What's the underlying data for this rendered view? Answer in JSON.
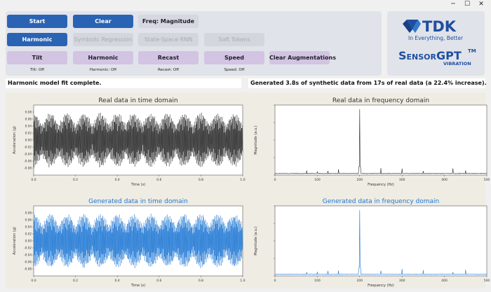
{
  "window": {
    "minimize_glyph": "─",
    "maximize_glyph": "☐",
    "close_glyph": "✕"
  },
  "controls": {
    "start": "Start",
    "clear": "Clear",
    "freq_magnitude": "Freq: Magnitude",
    "harmonic": "Harmonic",
    "symbolic_regression": "Symbolic Regression",
    "state_space_rnn": "State-Space RNN",
    "soft_tokens": "Soft Tokens"
  },
  "augmentations": {
    "tilt": {
      "label": "Tilt",
      "status": "Tilt: Off"
    },
    "harmonic": {
      "label": "Harmonic",
      "status": "Harmonic: Off"
    },
    "recast": {
      "label": "Recast",
      "status": "Recast: Off"
    },
    "speed": {
      "label": "Speed",
      "status": "Speed: Off"
    },
    "clear": "Clear Augmentations"
  },
  "logo": {
    "brand": "TDK",
    "tagline": "In Everything, Better",
    "product": "SensorGPT",
    "tm": "TM",
    "sub": "VIBRATION"
  },
  "status": {
    "left": "Harmonic model fit complete.",
    "right": "Generated 3.8s of synthetic data from 17s of real data (a 22.4% increase)."
  },
  "colors": {
    "real": "#2a2a2a",
    "generated": "#1f77d4",
    "title_real": "#333333",
    "title_generated": "#1f77d4"
  },
  "chart_data": [
    {
      "type": "line",
      "title": "Real data in time domain",
      "xlabel": "Time (s)",
      "ylabel": "Acceleration (g)",
      "xlim": [
        0,
        1.0
      ],
      "ylim": [
        -0.1,
        0.1
      ],
      "xticks": [
        "0.0",
        "0.2",
        "0.4",
        "0.6",
        "0.8",
        "1.0"
      ],
      "yticks": [
        "0.08",
        "0.06",
        "0.04",
        "0.02",
        "0.00",
        "-0.02",
        "-0.04",
        "-0.06",
        "-0.08"
      ],
      "series": [
        {
          "amplitude": 0.075,
          "main_freq_hz": 200,
          "beat_freq_hz": 25,
          "color": "#2a2a2a"
        }
      ]
    },
    {
      "type": "line",
      "title": "Real data in frequency domain",
      "xlabel": "Frequency (Hz)",
      "ylabel": "Magnitude (a.u.)",
      "xlim": [
        0,
        500
      ],
      "xticks": [
        "0",
        "100",
        "200",
        "300",
        "400",
        "500"
      ],
      "yticks": [],
      "series": [
        {
          "peak_hz": 200,
          "minor_peaks_hz": [
            75,
            100,
            125,
            150,
            250,
            300,
            350,
            420,
            450
          ],
          "color": "#2a2a2a"
        }
      ]
    },
    {
      "type": "line",
      "title": "Generated data in time domain",
      "xlabel": "Time (s)",
      "ylabel": "Acceleration (g)",
      "xlim": [
        0,
        1.0
      ],
      "ylim": [
        -0.1,
        0.1
      ],
      "xticks": [
        "0.0",
        "0.2",
        "0.4",
        "0.6",
        "0.8",
        "1.0"
      ],
      "yticks": [
        "0.08",
        "0.06",
        "0.04",
        "0.02",
        "0.00",
        "-0.02",
        "-0.04",
        "-0.06",
        "-0.08"
      ],
      "series": [
        {
          "amplitude": 0.075,
          "main_freq_hz": 200,
          "beat_freq_hz": 25,
          "color": "#1f77d4"
        }
      ]
    },
    {
      "type": "line",
      "title": "Generated data in frequency domain",
      "xlabel": "Frequency (Hz)",
      "ylabel": "Magnitude (a.u.)",
      "xlim": [
        0,
        500
      ],
      "xticks": [
        "0",
        "100",
        "200",
        "300",
        "400",
        "500"
      ],
      "yticks": [],
      "series": [
        {
          "peak_hz": 200,
          "minor_peaks_hz": [
            75,
            100,
            125,
            150,
            250,
            300,
            350,
            420,
            450
          ],
          "color": "#1f77d4"
        }
      ]
    }
  ]
}
